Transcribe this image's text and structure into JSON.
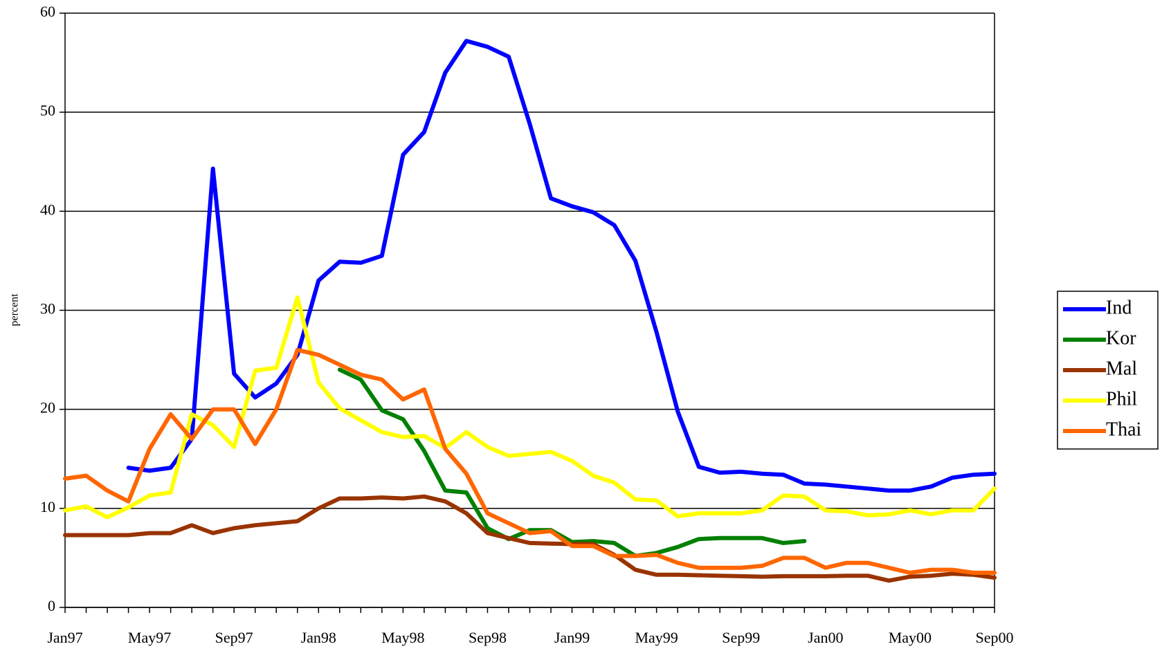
{
  "chart_data": {
    "type": "line",
    "y_label": "percent",
    "categories": [
      "Jan97",
      null,
      null,
      null,
      "May97",
      null,
      null,
      null,
      "Sep97",
      null,
      null,
      null,
      "Jan98",
      null,
      null,
      null,
      "May98",
      null,
      null,
      null,
      "Sep98",
      null,
      null,
      null,
      "Jan99",
      null,
      null,
      null,
      "May99",
      null,
      null,
      null,
      "Sep99",
      null,
      null,
      null,
      "Jan00",
      null,
      null,
      null,
      "May00",
      null,
      null,
      null,
      "Sep00"
    ],
    "ylim": [
      0,
      60
    ],
    "yticks": [
      0,
      10,
      20,
      30,
      40,
      50,
      60
    ],
    "grid": true,
    "legend": "right",
    "series": [
      {
        "name": "Ind",
        "color": "#0000ff",
        "values": [
          null,
          null,
          null,
          14.1,
          13.8,
          14.1,
          17,
          44.3,
          23.6,
          21.2,
          22.6,
          25.5,
          33,
          34.9,
          34.8,
          35.5,
          45.7,
          48,
          54,
          57.2,
          56.6,
          55.6,
          48.8,
          41.3,
          40.5,
          39.9,
          38.6,
          35,
          27.8,
          19.8,
          14.2,
          13.6,
          13.7,
          13.5,
          13.4,
          12.5,
          12.4,
          12.2,
          12,
          11.8,
          11.8,
          12.2,
          13.1,
          13.4,
          13.5
        ]
      },
      {
        "name": "Kor",
        "color": "#008000",
        "values": [
          null,
          null,
          null,
          null,
          null,
          null,
          null,
          null,
          null,
          null,
          null,
          null,
          null,
          24,
          23,
          19.9,
          19,
          15.8,
          11.8,
          11.6,
          8,
          6.9,
          7.8,
          7.8,
          6.6,
          6.7,
          6.5,
          5.2,
          5.5,
          6.1,
          6.9,
          7,
          7,
          7,
          6.5,
          6.7,
          null,
          null,
          null,
          null,
          null,
          null,
          null,
          null,
          null
        ]
      },
      {
        "name": "Mal",
        "color": "#993300",
        "values": [
          7.3,
          7.3,
          7.3,
          7.3,
          7.5,
          7.5,
          8.3,
          7.5,
          8,
          8.3,
          8.5,
          8.7,
          10,
          11,
          11,
          11.1,
          11,
          11.2,
          10.7,
          9.5,
          7.5,
          7,
          6.5,
          6.45,
          6.4,
          6.4,
          5.3,
          3.8,
          3.3,
          3.3,
          3.25,
          3.2,
          3.15,
          3.1,
          3.15,
          3.15,
          3.15,
          3.2,
          3.2,
          2.7,
          3.1,
          3.2,
          3.4,
          3.3,
          3
        ]
      },
      {
        "name": "Phil",
        "color": "#ffff00",
        "values": [
          9.8,
          10.2,
          9.1,
          10.1,
          11.3,
          11.6,
          19.5,
          18.4,
          16.2,
          23.9,
          24.2,
          31.3,
          22.7,
          20.1,
          18.9,
          17.7,
          17.2,
          17.3,
          16.1,
          17.7,
          16.2,
          15.3,
          15.5,
          15.7,
          14.8,
          13.3,
          12.6,
          10.9,
          10.8,
          9.2,
          9.5,
          9.5,
          9.5,
          9.8,
          11.3,
          11.2,
          9.8,
          9.7,
          9.3,
          9.4,
          9.8,
          9.4,
          9.8,
          9.8,
          12
        ]
      },
      {
        "name": "Thai",
        "color": "#ff6600",
        "values": [
          13,
          13.3,
          11.8,
          10.7,
          16,
          19.5,
          17,
          20,
          20,
          16.5,
          20,
          26,
          25.5,
          24.5,
          23.5,
          23,
          21,
          22,
          16,
          13.5,
          9.5,
          8.5,
          7.5,
          7.7,
          6.2,
          6.2,
          5.2,
          5.2,
          5.3,
          4.5,
          4,
          4,
          4,
          4.2,
          5,
          5,
          4,
          4.5,
          4.5,
          4,
          3.5,
          3.8,
          3.8,
          3.5,
          3.5
        ]
      }
    ]
  }
}
